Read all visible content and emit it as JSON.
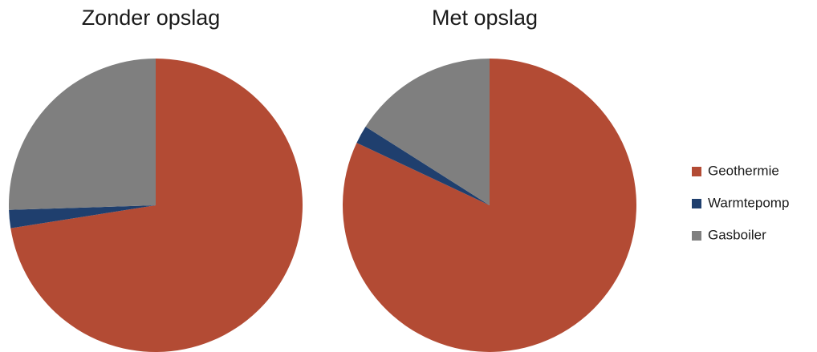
{
  "chart_data": [
    {
      "type": "pie",
      "title": "Zonder opslag",
      "categories": [
        "Geothermie",
        "Warmtepomp",
        "Gasboiler"
      ],
      "values": [
        72.5,
        2,
        25.5
      ],
      "colors": [
        "#b34b34",
        "#1f3f6e",
        "#7f7f7f"
      ],
      "legend": "right"
    },
    {
      "type": "pie",
      "title": "Met opslag",
      "categories": [
        "Geothermie",
        "Warmtepomp",
        "Gasboiler"
      ],
      "values": [
        82,
        2,
        16
      ],
      "colors": [
        "#b34b34",
        "#1f3f6e",
        "#7f7f7f"
      ]
    }
  ]
}
